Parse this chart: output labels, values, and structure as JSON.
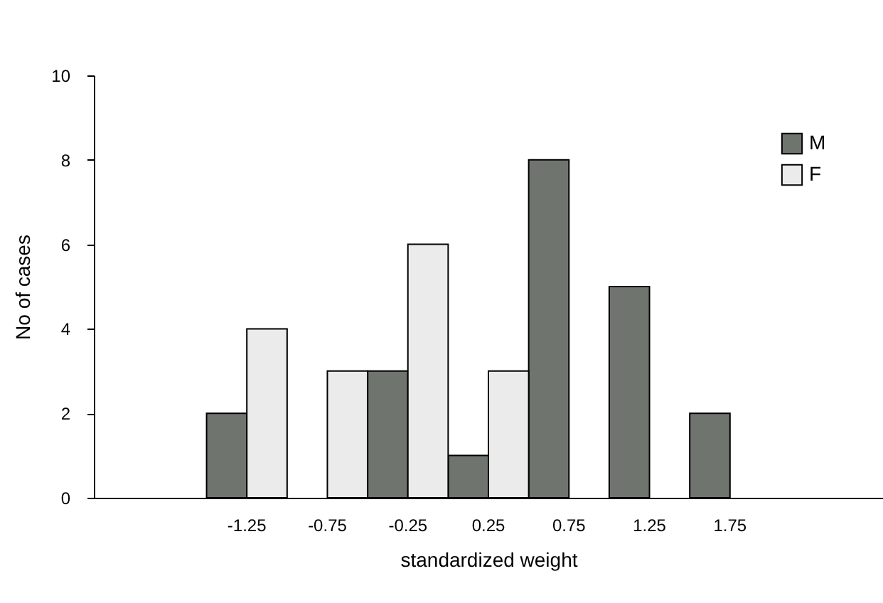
{
  "chart_data": {
    "type": "bar",
    "xlabel": "standardized weight",
    "ylabel": "No of cases",
    "categories": [
      null,
      "-1.25",
      "-0.75",
      "-0.25",
      "0.25",
      "0.75",
      "1.25",
      "1.75",
      null
    ],
    "series": [
      {
        "name": "M",
        "color": "#6f746f",
        "values": [
          null,
          2,
          null,
          3,
          1,
          8,
          5,
          2,
          null
        ]
      },
      {
        "name": "F",
        "color": "#ebebeb",
        "values": [
          null,
          4,
          3,
          6,
          3,
          null,
          null,
          null,
          null
        ]
      }
    ],
    "ylim": [
      0,
      10
    ],
    "yticks": [
      0,
      2,
      4,
      6,
      8,
      10
    ],
    "grid": false,
    "legend": "top right"
  }
}
